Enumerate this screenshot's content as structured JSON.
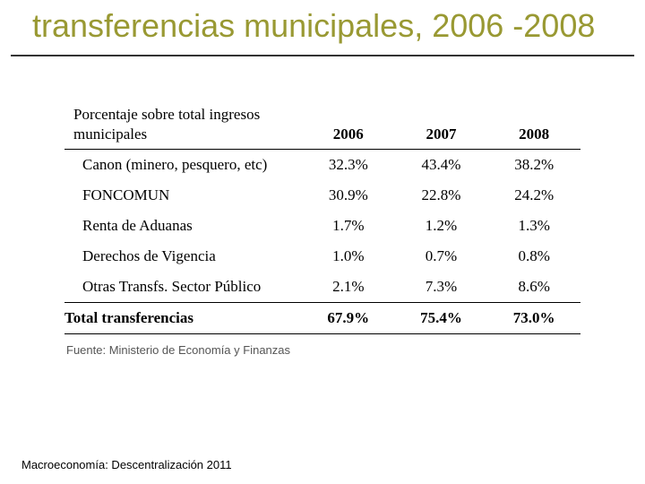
{
  "title": "transferencias municipales, 2006 -2008",
  "table": {
    "header_label": "Porcentaje sobre total ingresos municipales",
    "years": [
      "2006",
      "2007",
      "2008"
    ],
    "rows": [
      {
        "label": "Canon (minero, pesquero, etc)",
        "vals": [
          "32.3%",
          "43.4%",
          "38.2%"
        ]
      },
      {
        "label": "FONCOMUN",
        "vals": [
          "30.9%",
          "22.8%",
          "24.2%"
        ]
      },
      {
        "label": "Renta de Aduanas",
        "vals": [
          "1.7%",
          "1.2%",
          "1.3%"
        ]
      },
      {
        "label": "Derechos de Vigencia",
        "vals": [
          "1.0%",
          "0.7%",
          "0.8%"
        ]
      },
      {
        "label": "Otras Transfs. Sector Público",
        "vals": [
          "2.1%",
          "7.3%",
          "8.6%"
        ]
      }
    ],
    "total": {
      "label": "Total transferencias",
      "vals": [
        "67.9%",
        "75.4%",
        "73.0%"
      ]
    },
    "source": "Fuente: Ministerio de Economía y Finanzas"
  },
  "footer": "Macroeconomía: Descentralización 2011",
  "colors": {
    "title": "#999933",
    "rule": "#000000",
    "text": "#000000",
    "source": "#555555",
    "bg": "#ffffff"
  },
  "typography": {
    "title_fontsize": 36,
    "table_fontsize": 17,
    "source_fontsize": 13,
    "footer_fontsize": 13
  }
}
